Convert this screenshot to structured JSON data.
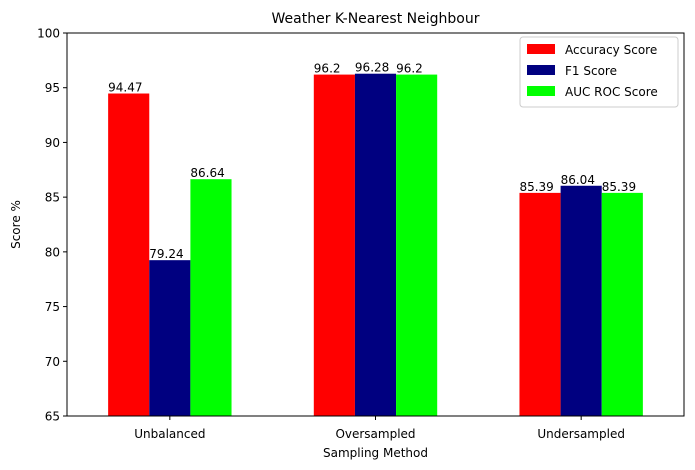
{
  "chart_data": {
    "type": "bar",
    "title": "Weather K-Nearest Neighbour",
    "xlabel": "Sampling Method",
    "ylabel": "Score %",
    "categories": [
      "Unbalanced",
      "Oversampled",
      "Undersampled"
    ],
    "ylim": [
      65,
      100
    ],
    "yticks": [
      "65",
      "70",
      "75",
      "80",
      "85",
      "90",
      "95",
      "100"
    ],
    "grid": false,
    "legend_position": "top-right",
    "series": [
      {
        "name": "Accuracy Score",
        "color": "#ff0000",
        "values": [
          94.47,
          96.2,
          85.39
        ],
        "labels": [
          "94.47",
          "96.2",
          "85.39"
        ]
      },
      {
        "name": "F1 Score",
        "color": "#000080",
        "values": [
          79.24,
          96.28,
          86.04
        ],
        "labels": [
          "79.24",
          "96.28",
          "86.04"
        ]
      },
      {
        "name": "AUC ROC Score",
        "color": "#00ff00",
        "values": [
          86.64,
          96.2,
          85.39
        ],
        "labels": [
          "86.64",
          "96.2",
          "85.39"
        ]
      }
    ]
  }
}
